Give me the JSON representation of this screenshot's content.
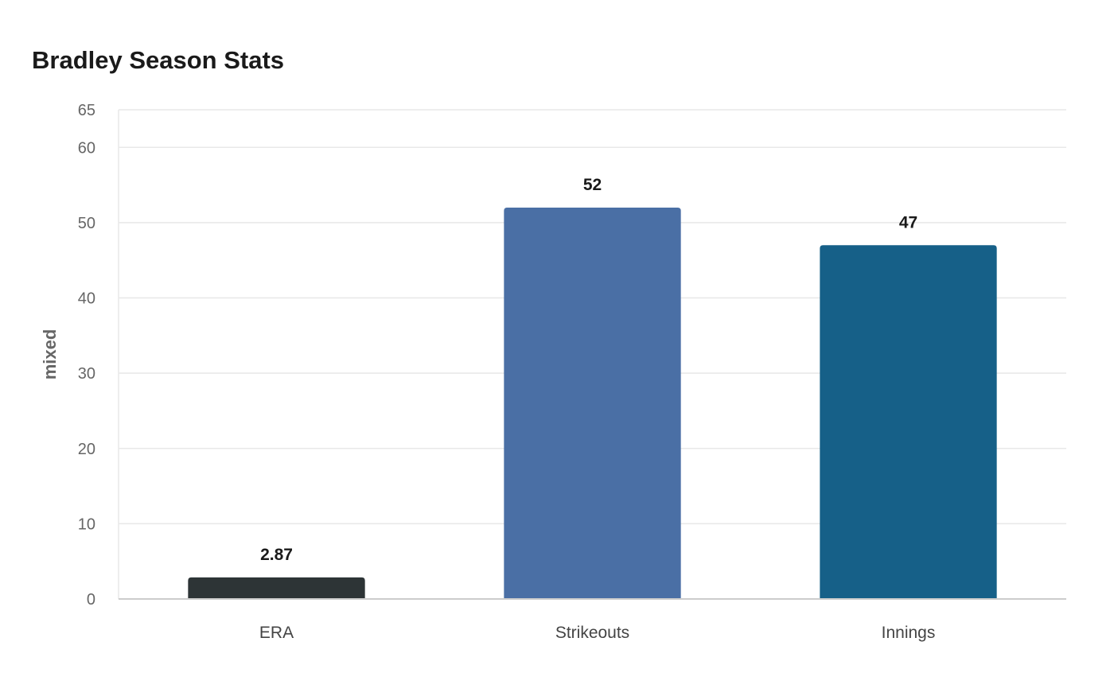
{
  "chart_data": {
    "type": "bar",
    "title": "Bradley Season Stats",
    "xlabel": "",
    "ylabel": "mixed",
    "categories": [
      "ERA",
      "Strikeouts",
      "Innings"
    ],
    "values": [
      2.87,
      52,
      47
    ],
    "data_labels": [
      "2.87",
      "52",
      "47"
    ],
    "colors": [
      "#2d3436",
      "#4a6fa5",
      "#166088"
    ],
    "ylim": [
      0,
      65
    ],
    "yticks": [
      0,
      10,
      20,
      30,
      40,
      50,
      60,
      65
    ],
    "grid": true,
    "grid_color": "#e8e8e8",
    "axis_color": "#cccccc",
    "legend": "none"
  }
}
